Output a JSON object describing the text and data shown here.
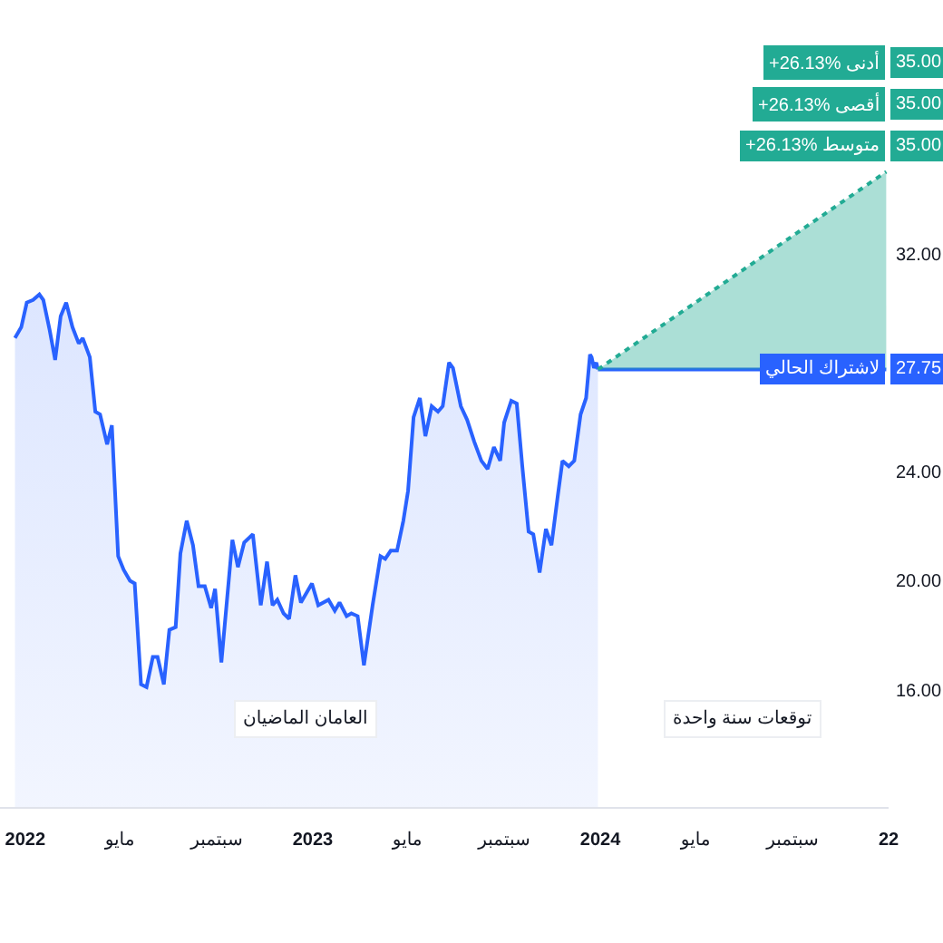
{
  "chart_data": {
    "type": "area",
    "x": [
      "2021-12-19",
      "2021-12-27",
      "2022-01-03",
      "2022-01-11",
      "2022-01-19",
      "2022-01-24",
      "2022-02-01",
      "2022-02-08",
      "2022-02-15",
      "2022-02-22",
      "2022-03-02",
      "2022-03-10",
      "2022-03-15",
      "2022-03-24",
      "2022-03-31",
      "2022-04-06",
      "2022-04-15",
      "2022-04-21",
      "2022-04-29",
      "2022-05-06",
      "2022-05-14",
      "2022-05-20",
      "2022-05-28",
      "2022-06-04",
      "2022-06-12",
      "2022-06-18",
      "2022-06-26",
      "2022-07-03",
      "2022-07-11",
      "2022-07-17",
      "2022-07-25",
      "2022-08-02",
      "2022-08-09",
      "2022-08-17",
      "2022-08-25",
      "2022-08-30",
      "2022-09-07",
      "2022-09-21",
      "2022-09-28",
      "2022-10-06",
      "2022-10-17",
      "2022-10-27",
      "2022-11-04",
      "2022-11-11",
      "2022-11-17",
      "2022-11-25",
      "2022-12-02",
      "2022-12-10",
      "2022-12-17",
      "2022-12-31",
      "2023-01-08",
      "2023-01-21",
      "2023-01-29",
      "2023-02-04",
      "2023-02-13",
      "2023-02-19",
      "2023-02-27",
      "2023-03-07",
      "2023-03-18",
      "2023-03-28",
      "2023-04-03",
      "2023-04-10",
      "2023-04-18",
      "2023-04-26",
      "2023-05-02",
      "2023-05-09",
      "2023-05-17",
      "2023-05-24",
      "2023-06-01",
      "2023-06-09",
      "2023-06-15",
      "2023-06-23",
      "2023-06-28",
      "2023-07-08",
      "2023-07-16",
      "2023-07-25",
      "2023-08-03",
      "2023-08-11",
      "2023-08-19",
      "2023-08-27",
      "2023-09-01",
      "2023-09-10",
      "2023-09-17",
      "2023-09-24",
      "2023-10-02",
      "2023-10-08",
      "2023-10-16",
      "2023-10-24",
      "2023-10-31",
      "2023-11-08",
      "2023-11-14",
      "2023-11-22",
      "2023-11-29",
      "2023-12-07",
      "2023-12-14",
      "2023-12-19",
      "2023-12-21",
      "2023-12-24",
      "2023-12-27",
      "2023-12-29"
    ],
    "series": [
      {
        "color": "#2962ff",
        "values": [
          28.9,
          29.3,
          30.2,
          30.3,
          30.5,
          30.3,
          29.2,
          28.1,
          29.7,
          30.2,
          29.3,
          28.7,
          28.9,
          28.2,
          26.2,
          26.1,
          25.0,
          25.7,
          20.9,
          20.4,
          20.0,
          19.9,
          16.2,
          16.1,
          17.2,
          17.2,
          16.2,
          18.2,
          18.3,
          21.0,
          22.2,
          21.3,
          19.8,
          19.8,
          19.0,
          19.7,
          17.0,
          21.5,
          20.5,
          21.4,
          21.7,
          19.1,
          20.7,
          19.1,
          19.3,
          18.8,
          18.6,
          20.2,
          19.2,
          19.9,
          19.1,
          19.3,
          18.9,
          19.2,
          18.7,
          18.8,
          18.7,
          16.9,
          19.1,
          20.9,
          20.8,
          21.1,
          21.1,
          22.2,
          23.3,
          26.0,
          26.7,
          25.3,
          26.4,
          26.2,
          26.4,
          28.0,
          27.8,
          26.4,
          25.9,
          25.1,
          24.4,
          24.1,
          24.9,
          24.4,
          25.8,
          26.6,
          26.5,
          24.2,
          21.8,
          21.7,
          20.3,
          21.9,
          21.3,
          23.1,
          24.4,
          24.2,
          24.4,
          26.1,
          26.7,
          28.3,
          28.2,
          27.8,
          28.0,
          27.75
        ]
      },
      {
        "type": "line",
        "color": "#2962ff",
        "x": [
          "2023-12-29",
          "2024-12-29"
        ],
        "values": [
          27.75,
          27.75
        ]
      },
      {
        "type": "line",
        "color": "#22ab94",
        "line_style": "dotted",
        "x": [
          "2023-12-29",
          "2024-12-29"
        ],
        "values": [
          27.75,
          35
        ],
        "lower": [
          27.75,
          27.75
        ],
        "upper": [
          27.75,
          35
        ]
      }
    ],
    "xlim": [
      "2021-11-30",
      "2025-01-01"
    ],
    "xticks": [
      {
        "value": "2022-01-01",
        "label": "2022"
      },
      {
        "value": "2022-05-01",
        "label": "مايو"
      },
      {
        "value": "2022-09-01",
        "label": "سبتمبر"
      },
      {
        "value": "2023-01-01",
        "label": "2023"
      },
      {
        "value": "2023-05-01",
        "label": "مايو"
      },
      {
        "value": "2023-09-01",
        "label": "سبتمبر"
      },
      {
        "value": "2024-01-01",
        "label": "2024"
      },
      {
        "value": "2024-05-01",
        "label": "مايو"
      },
      {
        "value": "2024-09-01",
        "label": "سبتمبر"
      },
      {
        "value": "2025-01-01",
        "label": "22"
      }
    ],
    "ylim": [
      11.7,
      41.3
    ],
    "yticks": [
      {
        "value": 16,
        "label": "16.00"
      },
      {
        "value": 20,
        "label": "20.00"
      },
      {
        "value": 24,
        "label": "24.00"
      },
      {
        "value": 32,
        "label": "32.00"
      }
    ],
    "annotations": [
      "العامان الماضيان",
      "توقعات سنة واحدة",
      "+26.13% أدنى",
      "35.00",
      "+26.13% أقصى",
      "35.00",
      "+26.13% متوسط",
      "35.00",
      {
        "text": "لاشتراك الحالي",
        "x": "2024-12-29",
        "y": 27.75
      },
      {
        "text": "27.75",
        "x": "2024-12-29",
        "y": 27.75
      }
    ]
  }
}
